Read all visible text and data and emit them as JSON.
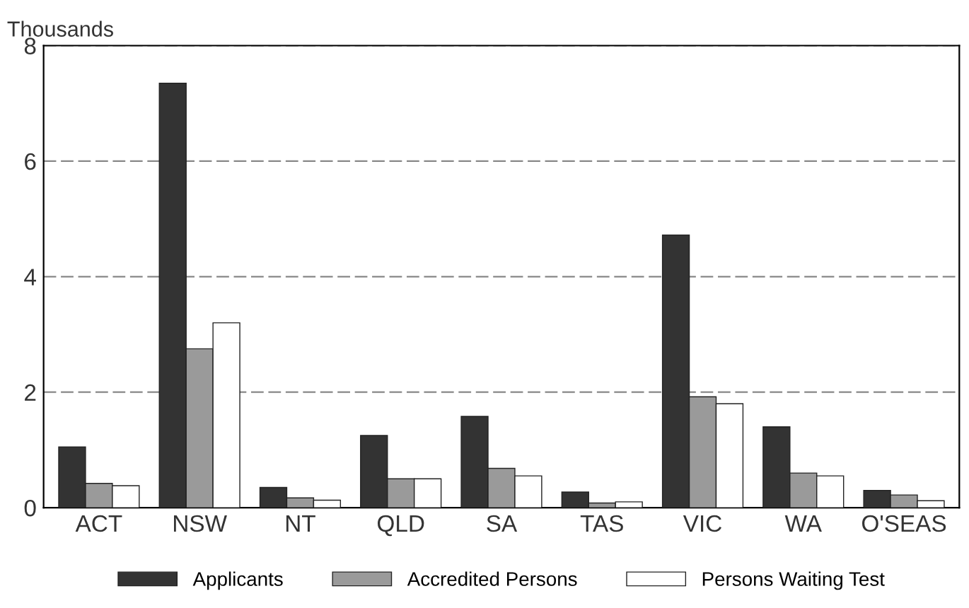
{
  "chart_data": {
    "type": "bar",
    "ylabel": "Thousands",
    "categories": [
      "ACT",
      "NSW",
      "NT",
      "QLD",
      "SA",
      "TAS",
      "VIC",
      "WA",
      "O'SEAS"
    ],
    "series": [
      {
        "name": "Applicants",
        "color": "#333333",
        "values": [
          1.05,
          7.35,
          0.35,
          1.25,
          1.58,
          0.27,
          4.72,
          1.4,
          0.3
        ]
      },
      {
        "name": "Accredited Persons",
        "color": "#9a9a9a",
        "values": [
          0.42,
          2.75,
          0.17,
          0.5,
          0.68,
          0.08,
          1.92,
          0.6,
          0.22
        ]
      },
      {
        "name": "Persons Waiting Test",
        "color": "#ffffff",
        "values": [
          0.38,
          3.2,
          0.13,
          0.5,
          0.55,
          0.1,
          1.8,
          0.55,
          0.12
        ]
      }
    ],
    "ylim": [
      0,
      8
    ],
    "yticks": [
      0,
      2,
      4,
      6,
      8
    ],
    "grid": "y",
    "legend": "bottom"
  }
}
